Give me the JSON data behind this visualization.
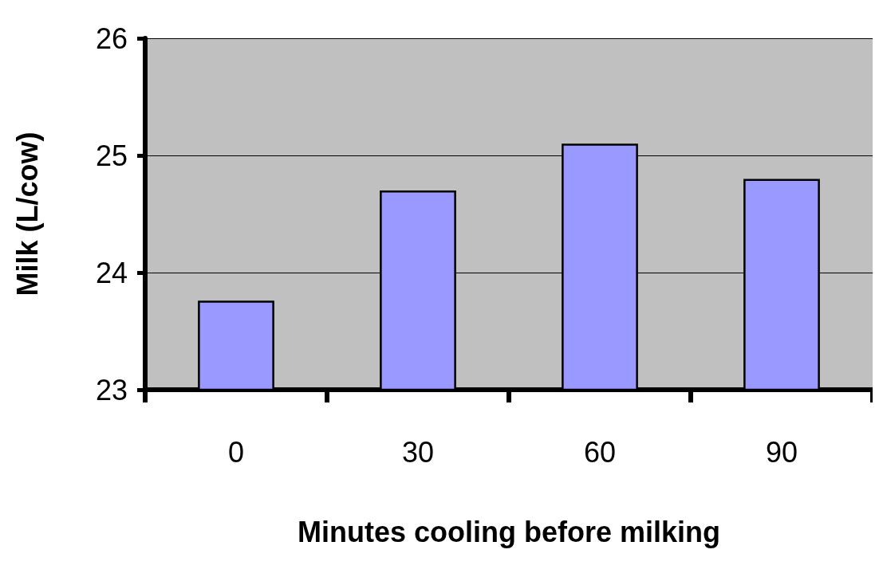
{
  "chart_data": {
    "type": "bar",
    "xlabel": "Minutes cooling before milking",
    "ylabel": "Milk (L/cow)",
    "categories": [
      "0",
      "30",
      "60",
      "90"
    ],
    "values": [
      23.76,
      24.7,
      25.1,
      24.8
    ],
    "color": "#9999ff",
    "ylim": [
      23,
      26
    ],
    "yticks": [
      23,
      24,
      25,
      26
    ],
    "grid": "y"
  }
}
